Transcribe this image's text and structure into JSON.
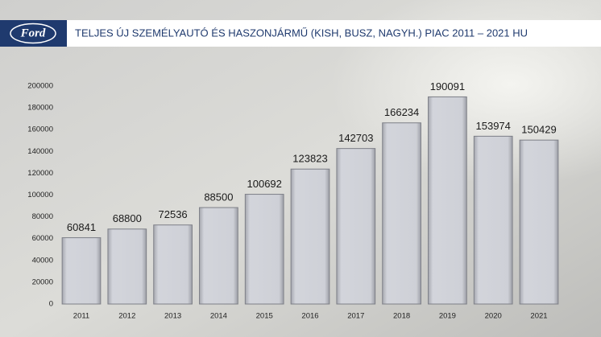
{
  "logo": "Ford",
  "chart_data": {
    "type": "bar",
    "title": "TELJES ÚJ SZEMÉLYAUTÓ ÉS HASZONJÁRMŰ (KISH, BUSZ, NAGYH.) PIAC 2011 – 2021 HU",
    "categories": [
      "2011",
      "2012",
      "2013",
      "2014",
      "2015",
      "2016",
      "2017",
      "2018",
      "2019",
      "2020",
      "2021"
    ],
    "values": [
      60841,
      68800,
      72536,
      88500,
      100692,
      123823,
      142703,
      166234,
      190091,
      153974,
      150429
    ],
    "color": "#c9cbd3",
    "ylim": [
      0,
      200000
    ],
    "yticks": [
      0,
      20000,
      40000,
      60000,
      80000,
      100000,
      120000,
      140000,
      160000,
      180000,
      200000
    ],
    "grid": false
  }
}
